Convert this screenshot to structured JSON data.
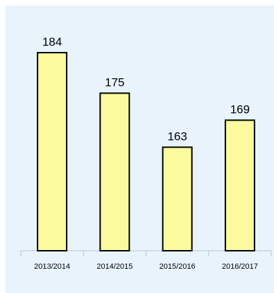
{
  "chart_data": {
    "type": "bar",
    "title": "",
    "xlabel": "",
    "ylabel": "",
    "categories": [
      "2013/2014",
      "2014/2015",
      "2015/2016",
      "2016/2017"
    ],
    "values": [
      184,
      175,
      163,
      169
    ],
    "ylim": [
      140,
      190
    ],
    "grid": false,
    "legend": "none",
    "bar_color": "#fbfb9e",
    "background_color": "#e9f3fb"
  }
}
